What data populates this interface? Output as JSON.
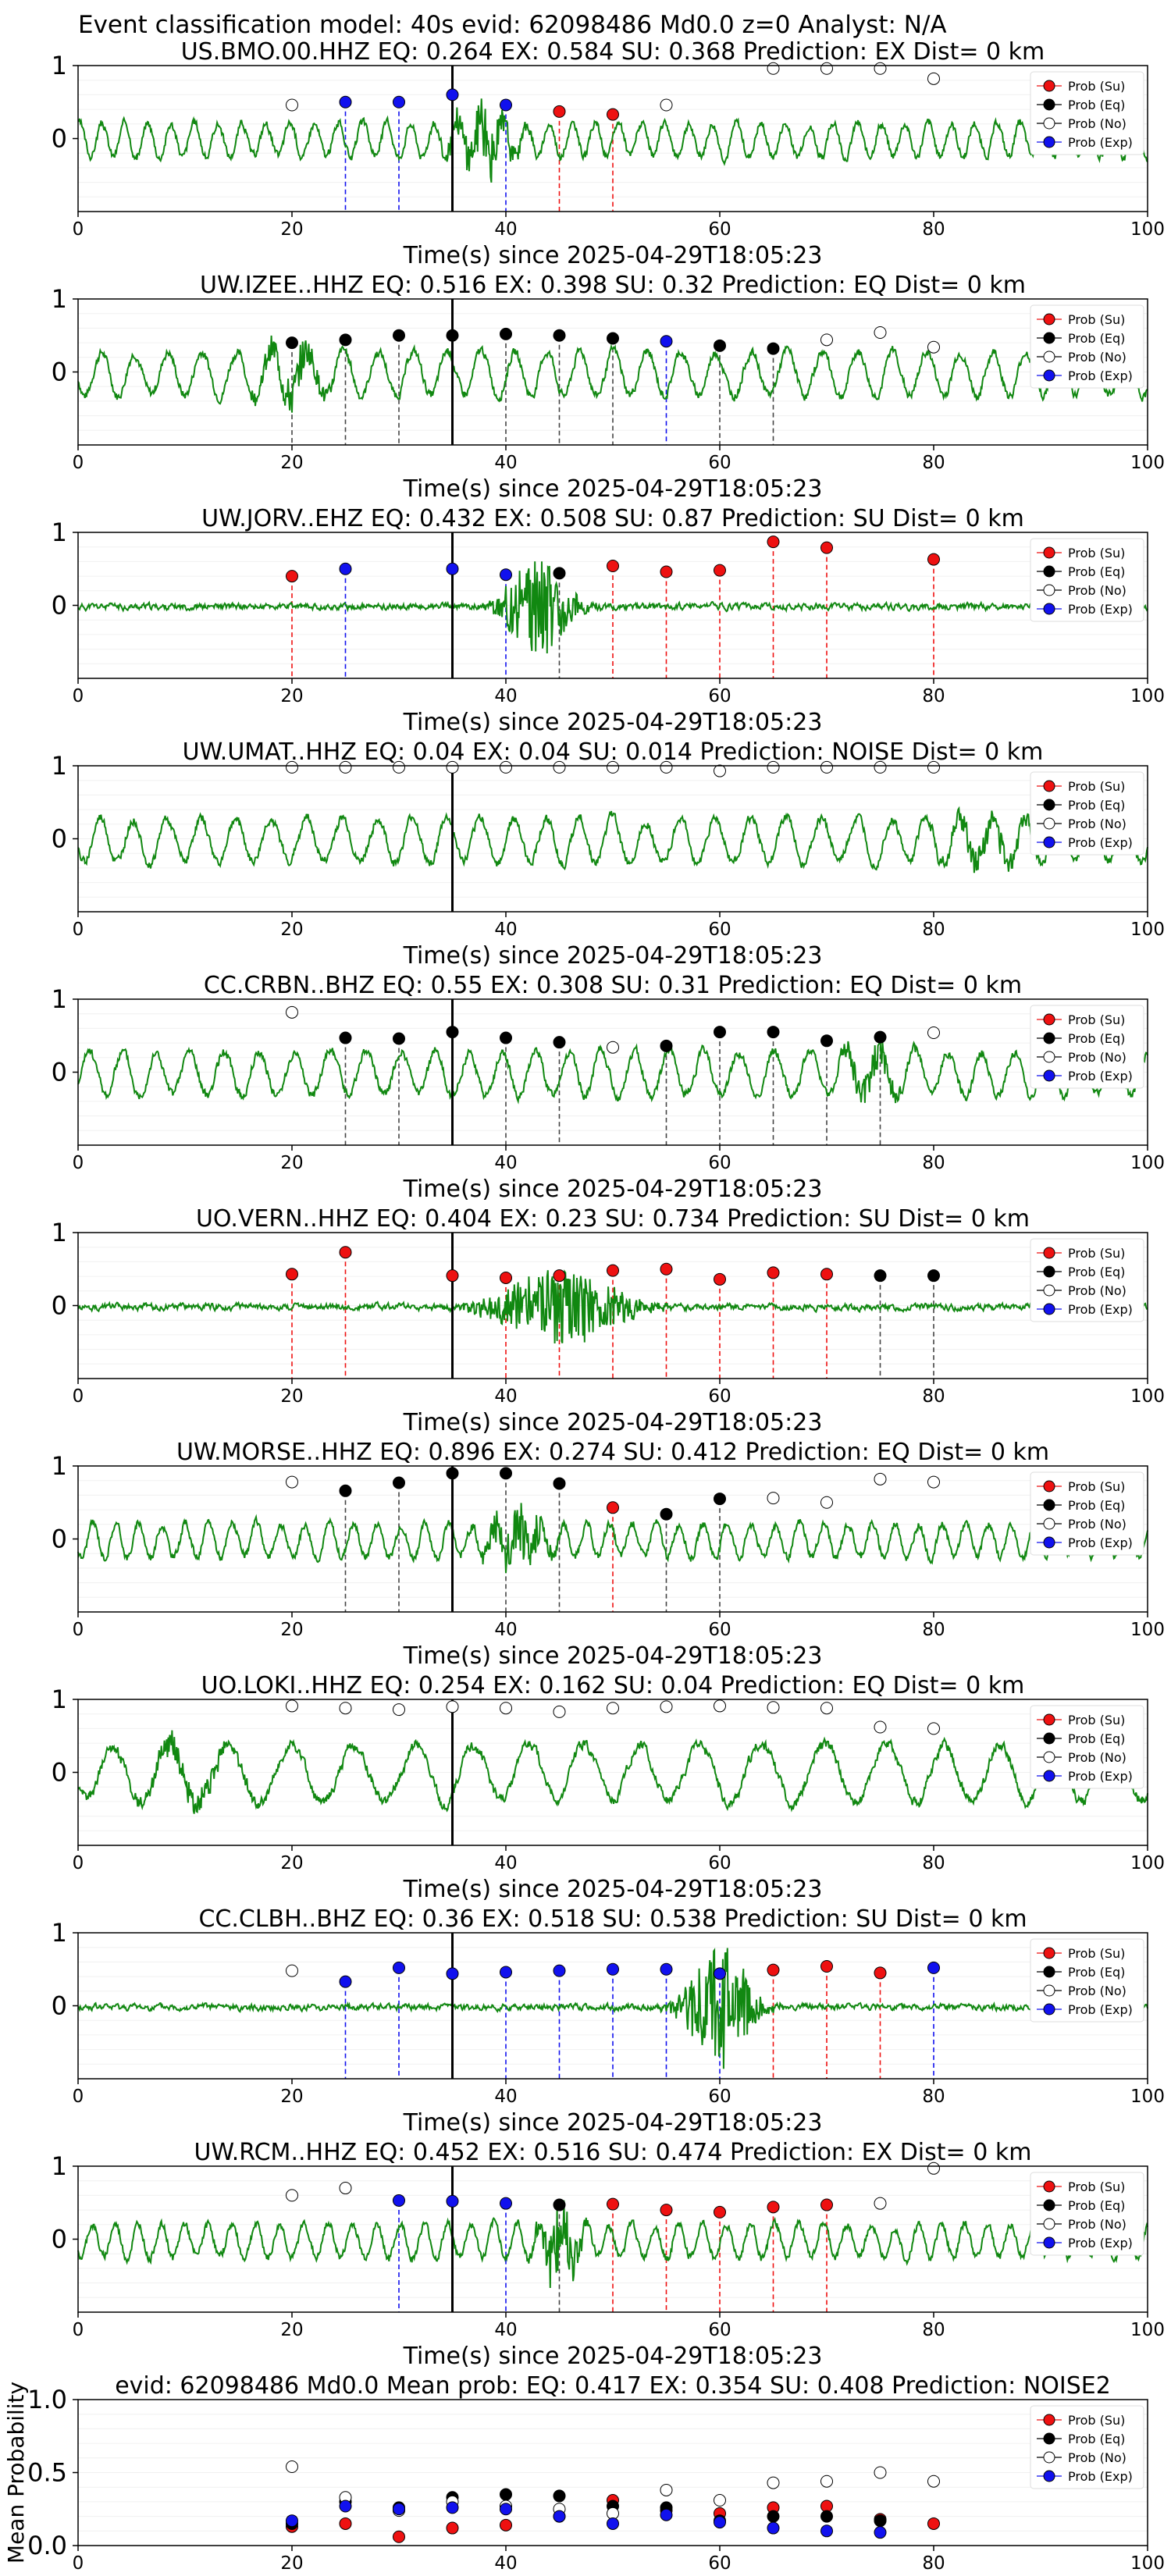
{
  "figure_title": "Event classification model: 40s evid: 62098486 Md0.0 z=0 Analyst: N/A",
  "colors": {
    "waveform": "#118811",
    "su": "#ee1111",
    "eq": "#000000",
    "exp": "#1111ee",
    "noise_fill": "#ffffff",
    "pick_line": "#000000"
  },
  "legend": [
    "Prob (Su)",
    "Prob (Eq)",
    "Prob (No)",
    "Prob (Exp)"
  ],
  "chart_data": [
    {
      "type": "line",
      "title": "US.BMO.00.HHZ   EQ: 0.264   EX: 0.584   SU: 0.368   Prediction: EX    Dist= 0 km",
      "xlabel": "Time(s) since 2025-04-29T18:05:23",
      "xlim": [
        0,
        100
      ],
      "ylim": [
        -1,
        1
      ],
      "xticks": [
        0,
        20,
        40,
        60,
        80,
        100
      ],
      "yticks": [
        1,
        0
      ],
      "pick_time": 35,
      "waveform": {
        "style": "noisy",
        "burst_center": 38,
        "burst_width": 3,
        "burst_amp": 0.45,
        "seed": 3
      },
      "windows": [
        {
          "t": 20,
          "cls": "No",
          "p": 0.46
        },
        {
          "t": 25,
          "cls": "Exp",
          "p": 0.5
        },
        {
          "t": 30,
          "cls": "Exp",
          "p": 0.5
        },
        {
          "t": 35,
          "cls": "Exp",
          "p": 0.6
        },
        {
          "t": 40,
          "cls": "Exp",
          "p": 0.46
        },
        {
          "t": 45,
          "cls": "Su",
          "p": 0.37
        },
        {
          "t": 50,
          "cls": "Su",
          "p": 0.33
        },
        {
          "t": 55,
          "cls": "No",
          "p": 0.46
        },
        {
          "t": 65,
          "cls": "No",
          "p": 0.96
        },
        {
          "t": 70,
          "cls": "No",
          "p": 0.96
        },
        {
          "t": 75,
          "cls": "No",
          "p": 0.96
        },
        {
          "t": 80,
          "cls": "No",
          "p": 0.82
        }
      ]
    },
    {
      "type": "line",
      "title": "UW.IZEE..HHZ   EQ: 0.516   EX: 0.398   SU: 0.32   Prediction: EQ    Dist= 0 km",
      "xlabel": "Time(s) since 2025-04-29T18:05:23",
      "xlim": [
        0,
        100
      ],
      "ylim": [
        -1,
        1
      ],
      "xticks": [
        0,
        20,
        40,
        60,
        80,
        100
      ],
      "yticks": [
        1,
        0
      ],
      "pick_time": 35,
      "waveform": {
        "style": "smooth",
        "burst_center": 20,
        "burst_width": 3,
        "burst_amp": 0.35,
        "seed": 7
      },
      "windows": [
        {
          "t": 20,
          "cls": "Eq",
          "p": 0.4
        },
        {
          "t": 25,
          "cls": "Eq",
          "p": 0.44
        },
        {
          "t": 30,
          "cls": "Eq",
          "p": 0.5
        },
        {
          "t": 35,
          "cls": "Eq",
          "p": 0.5
        },
        {
          "t": 40,
          "cls": "Eq",
          "p": 0.52
        },
        {
          "t": 45,
          "cls": "Eq",
          "p": 0.5
        },
        {
          "t": 50,
          "cls": "Eq",
          "p": 0.46
        },
        {
          "t": 55,
          "cls": "Exp",
          "p": 0.42
        },
        {
          "t": 60,
          "cls": "Eq",
          "p": 0.36
        },
        {
          "t": 65,
          "cls": "Eq",
          "p": 0.32
        },
        {
          "t": 70,
          "cls": "No",
          "p": 0.44
        },
        {
          "t": 75,
          "cls": "No",
          "p": 0.54
        },
        {
          "t": 80,
          "cls": "No",
          "p": 0.34
        }
      ]
    },
    {
      "type": "line",
      "title": "UW.JORV..EHZ   EQ: 0.432   EX: 0.508   SU: 0.87    Prediction: SU    Dist= 0 km",
      "xlabel": "Time(s) since 2025-04-29T18:05:23",
      "xlim": [
        0,
        100
      ],
      "ylim": [
        -1,
        1
      ],
      "xticks": [
        0,
        20,
        40,
        60,
        80,
        100
      ],
      "yticks": [
        1,
        0
      ],
      "pick_time": 35,
      "waveform": {
        "style": "quiet",
        "burst_center": 43,
        "burst_width": 3,
        "burst_amp": 0.7,
        "seed": 11
      },
      "windows": [
        {
          "t": 20,
          "cls": "Su",
          "p": 0.4
        },
        {
          "t": 25,
          "cls": "Exp",
          "p": 0.5
        },
        {
          "t": 35,
          "cls": "Exp",
          "p": 0.5
        },
        {
          "t": 40,
          "cls": "Exp",
          "p": 0.42
        },
        {
          "t": 45,
          "cls": "Eq",
          "p": 0.44
        },
        {
          "t": 50,
          "cls": "Su",
          "p": 0.54
        },
        {
          "t": 55,
          "cls": "Su",
          "p": 0.46
        },
        {
          "t": 60,
          "cls": "Su",
          "p": 0.48
        },
        {
          "t": 65,
          "cls": "Su",
          "p": 0.87
        },
        {
          "t": 70,
          "cls": "Su",
          "p": 0.79
        },
        {
          "t": 80,
          "cls": "Su",
          "p": 0.63
        }
      ]
    },
    {
      "type": "line",
      "title": "UW.UMAT..HHZ   EQ: 0.04   EX: 0.04   SU: 0.014   Prediction: NOISE    Dist= 0 km",
      "xlabel": "Time(s) since 2025-04-29T18:05:23",
      "xlim": [
        0,
        100
      ],
      "ylim": [
        -1,
        1
      ],
      "xticks": [
        0,
        20,
        40,
        60,
        80,
        100
      ],
      "yticks": [
        1,
        0
      ],
      "pick_time": 35,
      "waveform": {
        "style": "smooth",
        "burst_center": 85,
        "burst_width": 4,
        "burst_amp": 0.25,
        "seed": 19
      },
      "windows": [
        {
          "t": 20,
          "cls": "No",
          "p": 0.98
        },
        {
          "t": 25,
          "cls": "No",
          "p": 0.98
        },
        {
          "t": 30,
          "cls": "No",
          "p": 0.98
        },
        {
          "t": 35,
          "cls": "No",
          "p": 0.98
        },
        {
          "t": 40,
          "cls": "No",
          "p": 0.98
        },
        {
          "t": 45,
          "cls": "No",
          "p": 0.98
        },
        {
          "t": 50,
          "cls": "No",
          "p": 0.98
        },
        {
          "t": 55,
          "cls": "No",
          "p": 0.98
        },
        {
          "t": 60,
          "cls": "No",
          "p": 0.93
        },
        {
          "t": 65,
          "cls": "No",
          "p": 0.98
        },
        {
          "t": 70,
          "cls": "No",
          "p": 0.98
        },
        {
          "t": 75,
          "cls": "No",
          "p": 0.98
        },
        {
          "t": 80,
          "cls": "No",
          "p": 0.98
        }
      ]
    },
    {
      "type": "line",
      "title": "CC.CRBN..BHZ   EQ: 0.55   EX: 0.308   SU: 0.31   Prediction: EQ    Dist= 0 km",
      "xlabel": "Time(s) since 2025-04-29T18:05:23",
      "xlim": [
        0,
        100
      ],
      "ylim": [
        -1,
        1
      ],
      "xticks": [
        0,
        20,
        40,
        60,
        80,
        100
      ],
      "yticks": [
        1,
        0
      ],
      "pick_time": 35,
      "waveform": {
        "style": "smooth",
        "burst_center": 74,
        "burst_width": 3,
        "burst_amp": 0.3,
        "seed": 23
      },
      "windows": [
        {
          "t": 20,
          "cls": "No",
          "p": 0.82
        },
        {
          "t": 25,
          "cls": "Eq",
          "p": 0.47
        },
        {
          "t": 30,
          "cls": "Eq",
          "p": 0.46
        },
        {
          "t": 35,
          "cls": "Eq",
          "p": 0.55
        },
        {
          "t": 40,
          "cls": "Eq",
          "p": 0.47
        },
        {
          "t": 45,
          "cls": "Eq",
          "p": 0.41
        },
        {
          "t": 50,
          "cls": "No",
          "p": 0.34
        },
        {
          "t": 55,
          "cls": "Eq",
          "p": 0.36
        },
        {
          "t": 60,
          "cls": "Eq",
          "p": 0.55
        },
        {
          "t": 65,
          "cls": "Eq",
          "p": 0.55
        },
        {
          "t": 70,
          "cls": "Eq",
          "p": 0.43
        },
        {
          "t": 75,
          "cls": "Eq",
          "p": 0.48
        },
        {
          "t": 80,
          "cls": "No",
          "p": 0.54
        }
      ]
    },
    {
      "type": "line",
      "title": "UO.VERN..HHZ   EQ: 0.404   EX: 0.23   SU: 0.734   Prediction: SU    Dist= 0 km",
      "xlabel": "Time(s) since 2025-04-29T18:05:23",
      "xlim": [
        0,
        100
      ],
      "ylim": [
        -1,
        1
      ],
      "xticks": [
        0,
        20,
        40,
        60,
        80,
        100
      ],
      "yticks": [
        1,
        0
      ],
      "pick_time": 35,
      "waveform": {
        "style": "quiet",
        "burst_center": 45,
        "burst_width": 6,
        "burst_amp": 0.55,
        "seed": 29
      },
      "windows": [
        {
          "t": 20,
          "cls": "Su",
          "p": 0.43
        },
        {
          "t": 25,
          "cls": "Su",
          "p": 0.73
        },
        {
          "t": 35,
          "cls": "Su",
          "p": 0.41
        },
        {
          "t": 40,
          "cls": "Su",
          "p": 0.38
        },
        {
          "t": 45,
          "cls": "Su",
          "p": 0.41
        },
        {
          "t": 50,
          "cls": "Su",
          "p": 0.48
        },
        {
          "t": 55,
          "cls": "Su",
          "p": 0.5
        },
        {
          "t": 60,
          "cls": "Su",
          "p": 0.36
        },
        {
          "t": 65,
          "cls": "Su",
          "p": 0.45
        },
        {
          "t": 70,
          "cls": "Su",
          "p": 0.43
        },
        {
          "t": 75,
          "cls": "Eq",
          "p": 0.41
        },
        {
          "t": 80,
          "cls": "Eq",
          "p": 0.41
        }
      ]
    },
    {
      "type": "line",
      "title": "UW.MORSE..HHZ   EQ: 0.896   EX: 0.274   SU: 0.412   Prediction: EQ    Dist= 0 km",
      "xlabel": "Time(s) since 2025-04-29T18:05:23",
      "xlim": [
        0,
        100
      ],
      "ylim": [
        -1,
        1
      ],
      "xticks": [
        0,
        20,
        40,
        60,
        80,
        100
      ],
      "yticks": [
        1,
        0
      ],
      "pick_time": 35,
      "waveform": {
        "style": "noisy",
        "burst_center": 41,
        "burst_width": 3,
        "burst_amp": 0.5,
        "seed": 31
      },
      "windows": [
        {
          "t": 20,
          "cls": "No",
          "p": 0.78
        },
        {
          "t": 25,
          "cls": "Eq",
          "p": 0.66
        },
        {
          "t": 30,
          "cls": "Eq",
          "p": 0.77
        },
        {
          "t": 35,
          "cls": "Eq",
          "p": 0.9
        },
        {
          "t": 40,
          "cls": "Eq",
          "p": 0.9
        },
        {
          "t": 45,
          "cls": "Eq",
          "p": 0.76
        },
        {
          "t": 50,
          "cls": "Su",
          "p": 0.43
        },
        {
          "t": 55,
          "cls": "Eq",
          "p": 0.34
        },
        {
          "t": 60,
          "cls": "Eq",
          "p": 0.55
        },
        {
          "t": 65,
          "cls": "No",
          "p": 0.56
        },
        {
          "t": 70,
          "cls": "No",
          "p": 0.5
        },
        {
          "t": 75,
          "cls": "No",
          "p": 0.82
        },
        {
          "t": 80,
          "cls": "No",
          "p": 0.78
        }
      ]
    },
    {
      "type": "line",
      "title": "UO.LOKI..HHZ   EQ: 0.254   EX: 0.162   SU: 0.04   Prediction: EQ    Dist= 0 km",
      "xlabel": "Time(s) since 2025-04-29T18:05:23",
      "xlim": [
        0,
        100
      ],
      "ylim": [
        -1,
        1
      ],
      "xticks": [
        0,
        20,
        40,
        60,
        80,
        100
      ],
      "yticks": [
        1,
        0
      ],
      "pick_time": 35,
      "waveform": {
        "style": "long",
        "burst_center": 10,
        "burst_width": 5,
        "burst_amp": 0.2,
        "seed": 37
      },
      "windows": [
        {
          "t": 20,
          "cls": "No",
          "p": 0.91
        },
        {
          "t": 25,
          "cls": "No",
          "p": 0.88
        },
        {
          "t": 30,
          "cls": "No",
          "p": 0.86
        },
        {
          "t": 35,
          "cls": "No",
          "p": 0.9
        },
        {
          "t": 40,
          "cls": "No",
          "p": 0.88
        },
        {
          "t": 45,
          "cls": "No",
          "p": 0.83
        },
        {
          "t": 50,
          "cls": "No",
          "p": 0.88
        },
        {
          "t": 55,
          "cls": "No",
          "p": 0.9
        },
        {
          "t": 60,
          "cls": "No",
          "p": 0.91
        },
        {
          "t": 65,
          "cls": "No",
          "p": 0.89
        },
        {
          "t": 70,
          "cls": "No",
          "p": 0.88
        },
        {
          "t": 75,
          "cls": "No",
          "p": 0.62
        },
        {
          "t": 80,
          "cls": "No",
          "p": 0.6
        }
      ]
    },
    {
      "type": "line",
      "title": "CC.CLBH..BHZ   EQ: 0.36   EX: 0.518   SU: 0.538   Prediction: SU    Dist= 0 km",
      "xlabel": "Time(s) since 2025-04-29T18:05:23",
      "xlim": [
        0,
        100
      ],
      "ylim": [
        -1,
        1
      ],
      "xticks": [
        0,
        20,
        40,
        60,
        80,
        100
      ],
      "yticks": [
        1,
        0
      ],
      "pick_time": 35,
      "waveform": {
        "style": "quiet",
        "burst_center": 60,
        "burst_width": 3,
        "burst_amp": 0.9,
        "seed": 41
      },
      "windows": [
        {
          "t": 20,
          "cls": "No",
          "p": 0.48
        },
        {
          "t": 25,
          "cls": "Exp",
          "p": 0.33
        },
        {
          "t": 30,
          "cls": "Exp",
          "p": 0.52
        },
        {
          "t": 35,
          "cls": "Exp",
          "p": 0.44
        },
        {
          "t": 40,
          "cls": "Exp",
          "p": 0.46
        },
        {
          "t": 45,
          "cls": "Exp",
          "p": 0.48
        },
        {
          "t": 50,
          "cls": "Exp",
          "p": 0.5
        },
        {
          "t": 55,
          "cls": "Exp",
          "p": 0.5
        },
        {
          "t": 60,
          "cls": "Exp",
          "p": 0.44
        },
        {
          "t": 65,
          "cls": "Su",
          "p": 0.49
        },
        {
          "t": 70,
          "cls": "Su",
          "p": 0.54
        },
        {
          "t": 75,
          "cls": "Su",
          "p": 0.45
        },
        {
          "t": 80,
          "cls": "Exp",
          "p": 0.52
        }
      ]
    },
    {
      "type": "line",
      "title": "UW.RCM..HHZ   EQ: 0.452   EX: 0.516   SU: 0.474   Prediction: EX    Dist= 0 km",
      "xlabel": "Time(s) since 2025-04-29T18:05:23",
      "xlim": [
        0,
        100
      ],
      "ylim": [
        -1,
        1
      ],
      "xticks": [
        0,
        20,
        40,
        60,
        80,
        100
      ],
      "yticks": [
        1,
        0
      ],
      "pick_time": 35,
      "waveform": {
        "style": "noisy",
        "burst_center": 45,
        "burst_width": 2,
        "burst_amp": 0.7,
        "seed": 43
      },
      "windows": [
        {
          "t": 20,
          "cls": "No",
          "p": 0.6
        },
        {
          "t": 25,
          "cls": "No",
          "p": 0.7
        },
        {
          "t": 30,
          "cls": "Exp",
          "p": 0.53
        },
        {
          "t": 35,
          "cls": "Exp",
          "p": 0.52
        },
        {
          "t": 40,
          "cls": "Exp",
          "p": 0.49
        },
        {
          "t": 45,
          "cls": "Eq",
          "p": 0.47
        },
        {
          "t": 50,
          "cls": "Su",
          "p": 0.48
        },
        {
          "t": 55,
          "cls": "Su",
          "p": 0.4
        },
        {
          "t": 60,
          "cls": "Su",
          "p": 0.37
        },
        {
          "t": 65,
          "cls": "Su",
          "p": 0.44
        },
        {
          "t": 70,
          "cls": "Su",
          "p": 0.47
        },
        {
          "t": 75,
          "cls": "No",
          "p": 0.49
        },
        {
          "t": 80,
          "cls": "No",
          "p": 0.97
        }
      ]
    },
    {
      "type": "scatter",
      "title": "evid: 62098486  Md0.0   Mean prob:   EQ: 0.417  EX: 0.354  SU: 0.408   Prediction: NOISE2",
      "xlabel": "",
      "ylabel": "Mean Probability",
      "xlim": [
        0,
        100
      ],
      "ylim": [
        0,
        1
      ],
      "xticks": [
        0,
        20,
        40,
        60,
        80,
        100
      ],
      "yticks": [
        "1.0",
        "0.5",
        "0.0"
      ],
      "x": [
        20,
        25,
        30,
        35,
        40,
        45,
        50,
        55,
        60,
        65,
        70,
        75,
        80
      ],
      "series": [
        {
          "name": "Prob (Su)",
          "key": "su",
          "values": [
            0.13,
            0.15,
            0.06,
            0.12,
            0.14,
            0.2,
            0.31,
            0.24,
            0.22,
            0.26,
            0.27,
            0.18,
            0.15
          ]
        },
        {
          "name": "Prob (Eq)",
          "key": "eq",
          "values": [
            0.15,
            0.3,
            0.26,
            0.33,
            0.35,
            0.34,
            0.27,
            0.26,
            0.17,
            0.2,
            0.2,
            0.17,
            null
          ]
        },
        {
          "name": "Prob (No)",
          "key": "no",
          "values": [
            0.54,
            0.33,
            0.24,
            0.3,
            0.27,
            0.25,
            0.22,
            0.38,
            0.31,
            0.43,
            0.44,
            0.5,
            0.44
          ]
        },
        {
          "name": "Prob (Exp)",
          "key": "exp",
          "values": [
            0.17,
            0.27,
            0.25,
            0.26,
            0.25,
            0.2,
            0.15,
            0.21,
            0.16,
            0.12,
            0.1,
            0.09,
            null
          ]
        }
      ]
    }
  ]
}
